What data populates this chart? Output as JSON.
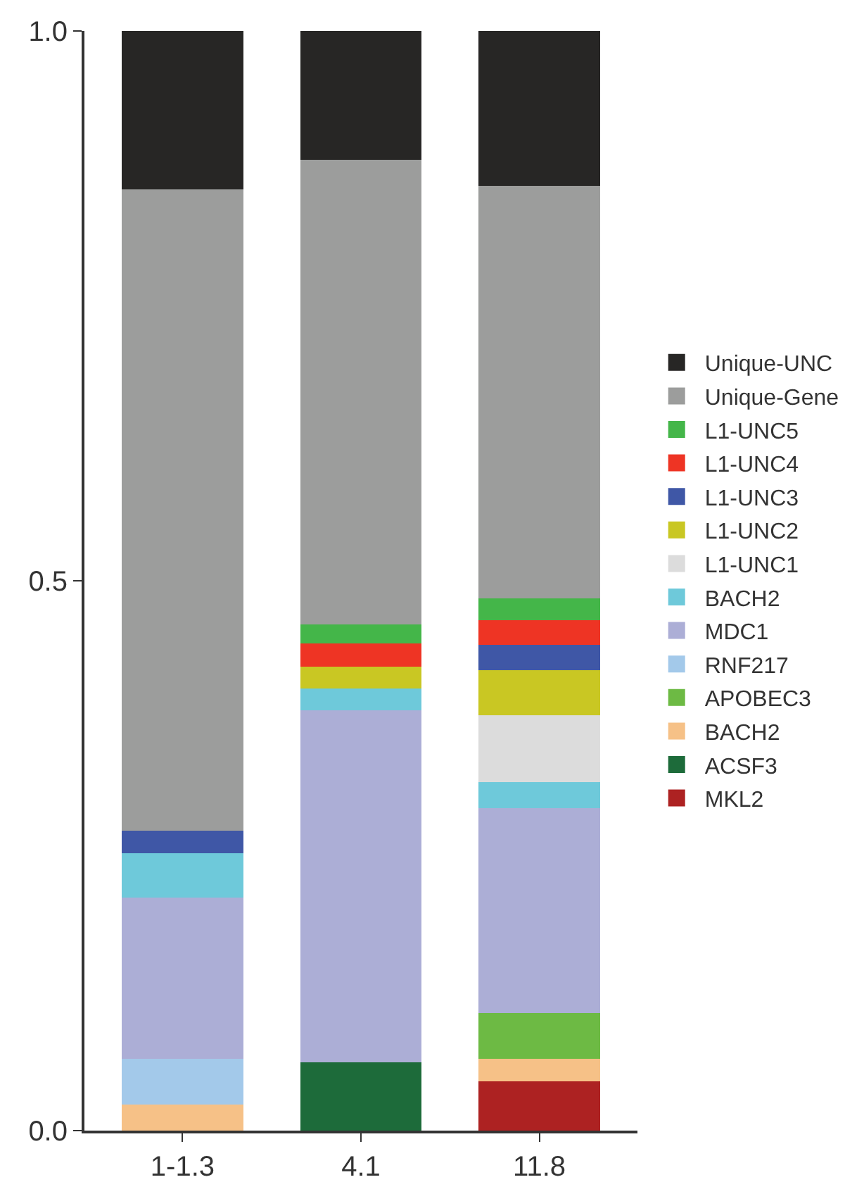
{
  "chart_data": {
    "type": "bar",
    "stacked": true,
    "categories": [
      "1-1.3",
      "4.1",
      "11.8"
    ],
    "series": [
      {
        "name": "MKL2",
        "color": "#ad2222",
        "values": [
          null,
          null,
          0.045
        ]
      },
      {
        "name": "ACSF3",
        "color": "#1d6b3a",
        "values": [
          null,
          0.062,
          null
        ]
      },
      {
        "name": "BACH2",
        "color": "#f6c187",
        "values": [
          0.024,
          null,
          0.02
        ]
      },
      {
        "name": "APOBEC3",
        "color": "#6dba44",
        "values": [
          null,
          null,
          0.042
        ]
      },
      {
        "name": "RNF217",
        "color": "#a3c9ea",
        "values": [
          0.041,
          null,
          null
        ]
      },
      {
        "name": "MDC1",
        "color": "#acaed6",
        "values": [
          0.147,
          0.32,
          0.186
        ]
      },
      {
        "name": "BACH2",
        "color": "#6ec9da",
        "values": [
          0.04,
          0.02,
          0.024
        ]
      },
      {
        "name": "L1-UNC1",
        "color": "#dcdcdc",
        "values": [
          null,
          null,
          0.061
        ]
      },
      {
        "name": "L1-UNC2",
        "color": "#c9c723",
        "values": [
          null,
          0.02,
          0.041
        ]
      },
      {
        "name": "L1-UNC3",
        "color": "#3f57a6",
        "values": [
          0.021,
          null,
          0.023
        ]
      },
      {
        "name": "L1-UNC4",
        "color": "#ee3424",
        "values": [
          null,
          0.021,
          0.022
        ]
      },
      {
        "name": "L1-UNC5",
        "color": "#44b649",
        "values": [
          null,
          0.017,
          0.02
        ]
      },
      {
        "name": "Unique-Gene",
        "color": "#9c9d9c",
        "values": [
          0.583,
          0.423,
          0.375
        ]
      },
      {
        "name": "Unique-UNC",
        "color": "#272625",
        "values": [
          0.144,
          0.117,
          0.141
        ]
      }
    ],
    "ylim": [
      0,
      1
    ],
    "yticks": [
      {
        "value": 0,
        "label": "0.0"
      },
      {
        "value": 0.5,
        "label": "0.5"
      },
      {
        "value": 1,
        "label": "1.0"
      }
    ],
    "grid": false,
    "legend": "right"
  }
}
